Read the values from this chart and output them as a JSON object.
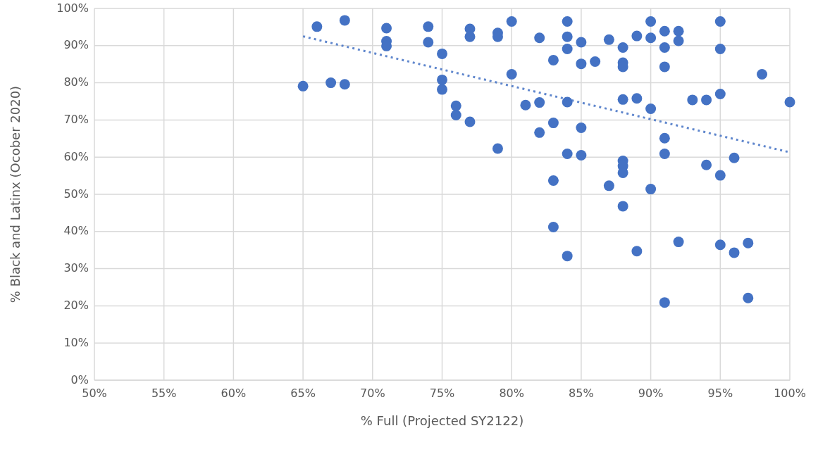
{
  "chart_data": {
    "type": "scatter",
    "xlabel": "% Full (Projected SY2122)",
    "ylabel": "% Black and Latinx (Ocober 2020)",
    "xlim": [
      50,
      100
    ],
    "ylim": [
      0,
      100
    ],
    "xticks": [
      {
        "value": 50,
        "label": "50%"
      },
      {
        "value": 55,
        "label": "55%"
      },
      {
        "value": 60,
        "label": "60%"
      },
      {
        "value": 65,
        "label": "65%"
      },
      {
        "value": 70,
        "label": "70%"
      },
      {
        "value": 75,
        "label": "75%"
      },
      {
        "value": 80,
        "label": "80%"
      },
      {
        "value": 85,
        "label": "85%"
      },
      {
        "value": 90,
        "label": "90%"
      },
      {
        "value": 95,
        "label": "95%"
      },
      {
        "value": 100,
        "label": "100%"
      }
    ],
    "yticks": [
      {
        "value": 0,
        "label": "0%"
      },
      {
        "value": 10,
        "label": "10%"
      },
      {
        "value": 20,
        "label": "20%"
      },
      {
        "value": 30,
        "label": "30%"
      },
      {
        "value": 40,
        "label": "40%"
      },
      {
        "value": 50,
        "label": "50%"
      },
      {
        "value": 60,
        "label": "60%"
      },
      {
        "value": 70,
        "label": "70%"
      },
      {
        "value": 80,
        "label": "80%"
      },
      {
        "value": 90,
        "label": "90%"
      },
      {
        "value": 100,
        "label": "100%"
      }
    ],
    "grid": true,
    "marker": "circle",
    "series": [
      {
        "type": "scatter",
        "color": "#4472c4",
        "x": [
          65,
          66,
          67,
          68,
          68,
          71,
          71,
          71,
          74,
          74,
          75,
          75,
          75,
          76,
          76,
          77,
          77,
          77,
          79,
          79,
          79,
          80,
          80,
          81,
          82,
          82,
          82,
          83,
          83,
          83,
          83,
          84,
          84,
          84,
          84,
          84,
          84,
          85,
          85,
          85,
          85,
          86,
          87,
          87,
          88,
          88,
          88,
          88,
          88,
          88,
          88,
          88,
          89,
          89,
          89,
          90,
          90,
          90,
          90,
          91,
          91,
          91,
          91,
          91,
          91,
          92,
          92,
          92,
          93,
          94,
          94,
          95,
          95,
          95,
          95,
          95,
          96,
          96,
          97,
          97,
          98,
          100
        ],
        "values": [
          79.1,
          95.1,
          80.0,
          96.8,
          79.6,
          94.7,
          91.2,
          89.9,
          95.1,
          90.9,
          87.8,
          80.8,
          78.2,
          73.8,
          71.3,
          94.5,
          92.4,
          69.5,
          93.4,
          92.4,
          62.3,
          96.5,
          82.3,
          74.0,
          92.1,
          74.7,
          66.6,
          86.1,
          69.2,
          53.7,
          41.2,
          96.5,
          92.4,
          89.1,
          74.8,
          60.9,
          33.4,
          90.9,
          85.1,
          67.9,
          60.5,
          85.7,
          91.6,
          52.3,
          89.5,
          85.4,
          84.3,
          75.5,
          59.0,
          57.6,
          55.8,
          46.8,
          92.6,
          75.8,
          34.7,
          96.5,
          92.1,
          73.0,
          51.4,
          93.9,
          89.5,
          84.3,
          65.1,
          60.9,
          20.9,
          93.9,
          91.3,
          37.2,
          75.4,
          75.4,
          57.9,
          96.5,
          89.1,
          77.0,
          55.1,
          36.4,
          59.8,
          34.3,
          36.9,
          22.1,
          82.3,
          74.8
        ]
      },
      {
        "type": "line",
        "color": "#4472c4",
        "line_style": "dotted",
        "marker": "none",
        "x": [
          65,
          100
        ],
        "values": [
          92.5,
          61.3
        ]
      }
    ]
  }
}
